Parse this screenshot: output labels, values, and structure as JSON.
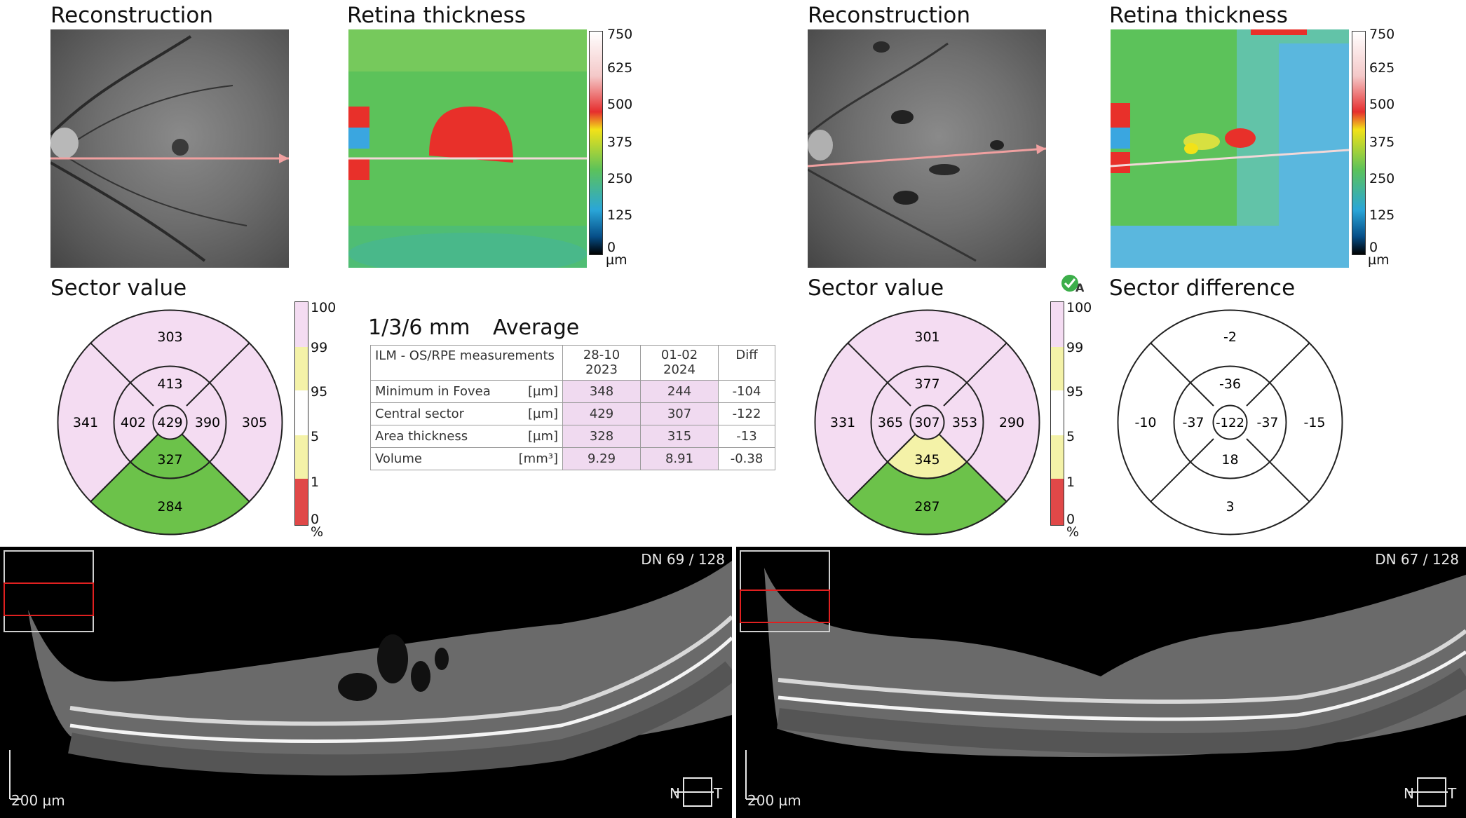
{
  "left_panel": {
    "reconstruction_title": "Reconstruction",
    "thickness_title": "Retina thickness",
    "thickness_scale": {
      "ticks": [
        "750",
        "625",
        "500",
        "375",
        "250",
        "125",
        "0"
      ],
      "unit": "µm"
    },
    "sector_title": "Sector value",
    "sectors": {
      "outer_top": "303",
      "inner_top": "413",
      "outer_left": "341",
      "inner_left": "402",
      "center": "429",
      "inner_right": "390",
      "outer_right": "305",
      "inner_bottom": "327",
      "outer_bottom": "284"
    },
    "percent_scale": {
      "ticks": [
        "100",
        "99",
        "95",
        "5",
        "1",
        "0"
      ],
      "unit": "%"
    }
  },
  "table": {
    "heading_grid": "1/3/6 mm",
    "heading_avg": "Average",
    "header_label": "ILM - OS/RPE measurements",
    "col1_line1": "28-10",
    "col1_line2": "2023",
    "col2_line1": "01-02",
    "col2_line2": "2024",
    "col3": "Diff",
    "rows": [
      {
        "label": "Minimum in Fovea",
        "unit": "[µm]",
        "v1": "348",
        "v2": "244",
        "diff": "-104"
      },
      {
        "label": "Central sector",
        "unit": "[µm]",
        "v1": "429",
        "v2": "307",
        "diff": "-122"
      },
      {
        "label": "Area thickness",
        "unit": "[µm]",
        "v1": "328",
        "v2": "315",
        "diff": "-13"
      },
      {
        "label": "Volume",
        "unit": "[mm³]",
        "v1": "9.29",
        "v2": "8.91",
        "diff": "-0.38"
      }
    ]
  },
  "right_panel": {
    "reconstruction_title": "Reconstruction",
    "thickness_title": "Retina thickness",
    "thickness_scale": {
      "ticks": [
        "750",
        "625",
        "500",
        "375",
        "250",
        "125",
        "0"
      ],
      "unit": "µm"
    },
    "sector_title": "Sector value",
    "sectors": {
      "outer_top": "301",
      "inner_top": "377",
      "outer_left": "331",
      "inner_left": "365",
      "center": "307",
      "inner_right": "353",
      "outer_right": "290",
      "inner_bottom": "345",
      "outer_bottom": "287"
    },
    "percent_scale": {
      "ticks": [
        "100",
        "99",
        "95",
        "5",
        "1",
        "0"
      ],
      "unit": "%"
    },
    "difference_title": "Sector difference",
    "difference": {
      "outer_top": "-2",
      "inner_top": "-36",
      "outer_left": "-10",
      "inner_left": "-37",
      "center": "-122",
      "inner_right": "-37",
      "outer_right": "-15",
      "inner_bottom": "18",
      "outer_bottom": "3"
    }
  },
  "oct_left": {
    "dn": "DN  69 / 128",
    "scale": "200 µm",
    "n": "N",
    "t": "T"
  },
  "oct_right": {
    "dn": "DN  67 / 128",
    "scale": "200 µm",
    "n": "N",
    "t": "T"
  },
  "colors": {
    "normal_pink": "#f4dcf2",
    "borderline_yellow": "#f4f2a8",
    "green": "#6cc24a",
    "red": "#e04848",
    "thick_green": "#5cc25a",
    "thick_red": "#e8302a",
    "thick_blue": "#3aa6e0",
    "accent_check": "#3cae4a"
  }
}
